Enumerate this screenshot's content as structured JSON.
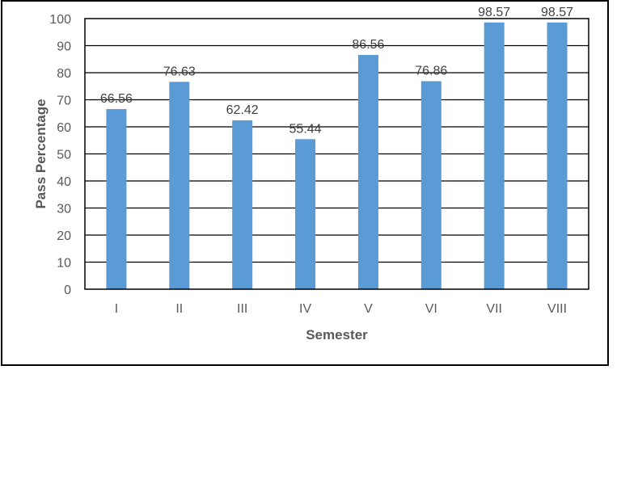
{
  "chart_data": {
    "type": "bar",
    "categories": [
      "I",
      "II",
      "III",
      "IV",
      "V",
      "VI",
      "VII",
      "VIII"
    ],
    "values": [
      66.56,
      76.63,
      62.42,
      55.44,
      86.56,
      76.86,
      98.57,
      98.57
    ],
    "data_labels": [
      "66.56",
      "76.63",
      "62.42",
      "55.44",
      "86.56",
      "76.86",
      "98.57",
      "98.57"
    ],
    "title": "",
    "xlabel": "Semester",
    "ylabel": "Pass Percentage",
    "ylim": [
      0,
      100
    ],
    "yticks": [
      0,
      10,
      20,
      30,
      40,
      50,
      60,
      70,
      80,
      90,
      100
    ],
    "grid": true,
    "legend": "none",
    "bar_color": "#5B9BD5"
  }
}
